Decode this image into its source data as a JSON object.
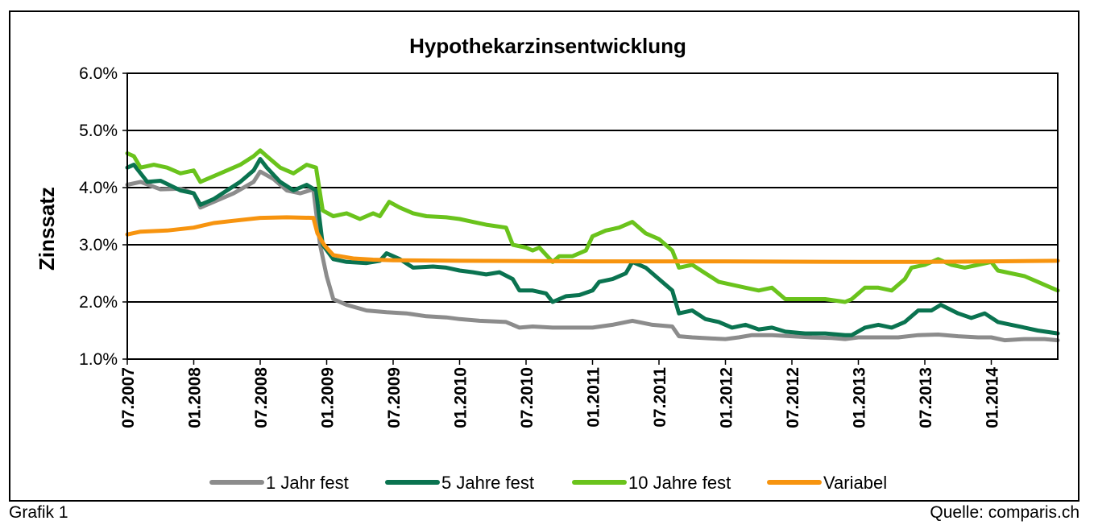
{
  "chart_data": {
    "type": "line",
    "title": "Hypothekarzinsentwicklung",
    "xlabel": "",
    "ylabel": "Zinssatz",
    "ylim": [
      1.0,
      6.0
    ],
    "yticks": [
      "1.0%",
      "2.0%",
      "3.0%",
      "4.0%",
      "5.0%",
      "6.0%"
    ],
    "xlim": [
      2007.5,
      2014.5
    ],
    "xticks": [
      "07.2007",
      "01.2008",
      "07.2008",
      "01.2009",
      "07.2009",
      "01.2010",
      "07.2010",
      "01.2011",
      "07.2011",
      "01.2012",
      "07.2012",
      "01.2013",
      "07.2013",
      "01.2014"
    ],
    "grid": true,
    "legend_position": "bottom",
    "series": [
      {
        "name": "1 Jahr fest",
        "color": "#8c8c8c",
        "points": [
          [
            2007.5,
            4.05
          ],
          [
            2007.6,
            4.1
          ],
          [
            2007.75,
            3.97
          ],
          [
            2007.9,
            3.98
          ],
          [
            2008.0,
            3.9
          ],
          [
            2008.05,
            3.65
          ],
          [
            2008.15,
            3.75
          ],
          [
            2008.3,
            3.9
          ],
          [
            2008.45,
            4.1
          ],
          [
            2008.5,
            4.28
          ],
          [
            2008.6,
            4.15
          ],
          [
            2008.7,
            3.95
          ],
          [
            2008.8,
            3.9
          ],
          [
            2008.9,
            3.97
          ],
          [
            2008.95,
            3.0
          ],
          [
            2009.0,
            2.45
          ],
          [
            2009.05,
            2.05
          ],
          [
            2009.15,
            1.95
          ],
          [
            2009.3,
            1.85
          ],
          [
            2009.45,
            1.82
          ],
          [
            2009.6,
            1.8
          ],
          [
            2009.75,
            1.75
          ],
          [
            2009.9,
            1.73
          ],
          [
            2010.0,
            1.7
          ],
          [
            2010.15,
            1.67
          ],
          [
            2010.25,
            1.66
          ],
          [
            2010.35,
            1.65
          ],
          [
            2010.45,
            1.55
          ],
          [
            2010.55,
            1.57
          ],
          [
            2010.7,
            1.55
          ],
          [
            2010.85,
            1.55
          ],
          [
            2011.0,
            1.55
          ],
          [
            2011.15,
            1.6
          ],
          [
            2011.3,
            1.67
          ],
          [
            2011.45,
            1.6
          ],
          [
            2011.6,
            1.57
          ],
          [
            2011.65,
            1.4
          ],
          [
            2011.75,
            1.38
          ],
          [
            2011.9,
            1.36
          ],
          [
            2012.0,
            1.35
          ],
          [
            2012.1,
            1.38
          ],
          [
            2012.2,
            1.42
          ],
          [
            2012.35,
            1.42
          ],
          [
            2012.5,
            1.4
          ],
          [
            2012.65,
            1.38
          ],
          [
            2012.8,
            1.37
          ],
          [
            2012.9,
            1.35
          ],
          [
            2013.0,
            1.38
          ],
          [
            2013.15,
            1.38
          ],
          [
            2013.3,
            1.38
          ],
          [
            2013.45,
            1.42
          ],
          [
            2013.6,
            1.43
          ],
          [
            2013.75,
            1.4
          ],
          [
            2013.9,
            1.38
          ],
          [
            2014.0,
            1.38
          ],
          [
            2014.1,
            1.33
          ],
          [
            2014.25,
            1.35
          ],
          [
            2014.4,
            1.35
          ],
          [
            2014.5,
            1.33
          ]
        ]
      },
      {
        "name": "5 Jahre fest",
        "color": "#0a7350",
        "points": [
          [
            2007.5,
            4.35
          ],
          [
            2007.55,
            4.4
          ],
          [
            2007.65,
            4.1
          ],
          [
            2007.75,
            4.12
          ],
          [
            2007.9,
            3.95
          ],
          [
            2008.0,
            3.9
          ],
          [
            2008.05,
            3.7
          ],
          [
            2008.15,
            3.8
          ],
          [
            2008.25,
            3.95
          ],
          [
            2008.35,
            4.1
          ],
          [
            2008.45,
            4.3
          ],
          [
            2008.5,
            4.5
          ],
          [
            2008.55,
            4.35
          ],
          [
            2008.65,
            4.1
          ],
          [
            2008.75,
            3.95
          ],
          [
            2008.85,
            4.05
          ],
          [
            2008.92,
            3.95
          ],
          [
            2008.97,
            3.0
          ],
          [
            2009.05,
            2.75
          ],
          [
            2009.15,
            2.7
          ],
          [
            2009.3,
            2.68
          ],
          [
            2009.4,
            2.72
          ],
          [
            2009.45,
            2.85
          ],
          [
            2009.55,
            2.75
          ],
          [
            2009.65,
            2.6
          ],
          [
            2009.8,
            2.62
          ],
          [
            2009.9,
            2.6
          ],
          [
            2010.0,
            2.55
          ],
          [
            2010.1,
            2.52
          ],
          [
            2010.2,
            2.48
          ],
          [
            2010.3,
            2.52
          ],
          [
            2010.4,
            2.4
          ],
          [
            2010.45,
            2.2
          ],
          [
            2010.55,
            2.2
          ],
          [
            2010.65,
            2.15
          ],
          [
            2010.7,
            2.0
          ],
          [
            2010.8,
            2.1
          ],
          [
            2010.9,
            2.12
          ],
          [
            2011.0,
            2.2
          ],
          [
            2011.05,
            2.35
          ],
          [
            2011.15,
            2.4
          ],
          [
            2011.25,
            2.5
          ],
          [
            2011.3,
            2.7
          ],
          [
            2011.4,
            2.6
          ],
          [
            2011.5,
            2.4
          ],
          [
            2011.6,
            2.2
          ],
          [
            2011.65,
            1.8
          ],
          [
            2011.75,
            1.85
          ],
          [
            2011.85,
            1.7
          ],
          [
            2011.95,
            1.65
          ],
          [
            2012.05,
            1.55
          ],
          [
            2012.15,
            1.6
          ],
          [
            2012.25,
            1.52
          ],
          [
            2012.35,
            1.55
          ],
          [
            2012.45,
            1.48
          ],
          [
            2012.6,
            1.45
          ],
          [
            2012.75,
            1.45
          ],
          [
            2012.9,
            1.42
          ],
          [
            2012.95,
            1.42
          ],
          [
            2013.05,
            1.55
          ],
          [
            2013.15,
            1.6
          ],
          [
            2013.25,
            1.55
          ],
          [
            2013.35,
            1.65
          ],
          [
            2013.45,
            1.85
          ],
          [
            2013.55,
            1.85
          ],
          [
            2013.62,
            1.95
          ],
          [
            2013.75,
            1.8
          ],
          [
            2013.85,
            1.72
          ],
          [
            2013.95,
            1.8
          ],
          [
            2014.05,
            1.65
          ],
          [
            2014.15,
            1.6
          ],
          [
            2014.25,
            1.55
          ],
          [
            2014.35,
            1.5
          ],
          [
            2014.5,
            1.45
          ]
        ]
      },
      {
        "name": "10 Jahre fest",
        "color": "#6ac31c",
        "points": [
          [
            2007.5,
            4.6
          ],
          [
            2007.55,
            4.55
          ],
          [
            2007.6,
            4.35
          ],
          [
            2007.7,
            4.4
          ],
          [
            2007.8,
            4.35
          ],
          [
            2007.9,
            4.25
          ],
          [
            2008.0,
            4.3
          ],
          [
            2008.05,
            4.1
          ],
          [
            2008.15,
            4.2
          ],
          [
            2008.25,
            4.3
          ],
          [
            2008.35,
            4.4
          ],
          [
            2008.45,
            4.55
          ],
          [
            2008.5,
            4.65
          ],
          [
            2008.55,
            4.55
          ],
          [
            2008.65,
            4.35
          ],
          [
            2008.75,
            4.25
          ],
          [
            2008.85,
            4.4
          ],
          [
            2008.92,
            4.35
          ],
          [
            2008.97,
            3.6
          ],
          [
            2009.05,
            3.5
          ],
          [
            2009.15,
            3.55
          ],
          [
            2009.25,
            3.45
          ],
          [
            2009.35,
            3.55
          ],
          [
            2009.4,
            3.5
          ],
          [
            2009.47,
            3.75
          ],
          [
            2009.55,
            3.65
          ],
          [
            2009.65,
            3.55
          ],
          [
            2009.75,
            3.5
          ],
          [
            2009.9,
            3.48
          ],
          [
            2010.0,
            3.45
          ],
          [
            2010.1,
            3.4
          ],
          [
            2010.2,
            3.35
          ],
          [
            2010.35,
            3.3
          ],
          [
            2010.4,
            3.0
          ],
          [
            2010.5,
            2.95
          ],
          [
            2010.55,
            2.9
          ],
          [
            2010.6,
            2.95
          ],
          [
            2010.7,
            2.7
          ],
          [
            2010.75,
            2.8
          ],
          [
            2010.85,
            2.8
          ],
          [
            2010.95,
            2.9
          ],
          [
            2011.0,
            3.15
          ],
          [
            2011.1,
            3.25
          ],
          [
            2011.2,
            3.3
          ],
          [
            2011.3,
            3.4
          ],
          [
            2011.4,
            3.2
          ],
          [
            2011.5,
            3.1
          ],
          [
            2011.6,
            2.9
          ],
          [
            2011.65,
            2.6
          ],
          [
            2011.75,
            2.65
          ],
          [
            2011.85,
            2.5
          ],
          [
            2011.95,
            2.35
          ],
          [
            2012.05,
            2.3
          ],
          [
            2012.15,
            2.25
          ],
          [
            2012.25,
            2.2
          ],
          [
            2012.35,
            2.25
          ],
          [
            2012.45,
            2.05
          ],
          [
            2012.6,
            2.05
          ],
          [
            2012.75,
            2.05
          ],
          [
            2012.9,
            2.0
          ],
          [
            2012.95,
            2.05
          ],
          [
            2013.05,
            2.25
          ],
          [
            2013.15,
            2.25
          ],
          [
            2013.25,
            2.2
          ],
          [
            2013.35,
            2.4
          ],
          [
            2013.4,
            2.6
          ],
          [
            2013.5,
            2.65
          ],
          [
            2013.6,
            2.75
          ],
          [
            2013.7,
            2.65
          ],
          [
            2013.8,
            2.6
          ],
          [
            2013.9,
            2.65
          ],
          [
            2014.0,
            2.7
          ],
          [
            2014.05,
            2.55
          ],
          [
            2014.15,
            2.5
          ],
          [
            2014.25,
            2.45
          ],
          [
            2014.35,
            2.35
          ],
          [
            2014.45,
            2.25
          ],
          [
            2014.5,
            2.2
          ]
        ]
      },
      {
        "name": "Variabel",
        "color": "#f7940f",
        "points": [
          [
            2007.5,
            3.18
          ],
          [
            2007.6,
            3.23
          ],
          [
            2007.8,
            3.25
          ],
          [
            2008.0,
            3.3
          ],
          [
            2008.15,
            3.38
          ],
          [
            2008.3,
            3.42
          ],
          [
            2008.5,
            3.47
          ],
          [
            2008.7,
            3.48
          ],
          [
            2008.9,
            3.47
          ],
          [
            2008.93,
            3.2
          ],
          [
            2008.98,
            3.0
          ],
          [
            2009.05,
            2.82
          ],
          [
            2009.2,
            2.76
          ],
          [
            2009.35,
            2.74
          ],
          [
            2009.5,
            2.73
          ],
          [
            2010.0,
            2.72
          ],
          [
            2011.0,
            2.71
          ],
          [
            2012.0,
            2.71
          ],
          [
            2013.0,
            2.7
          ],
          [
            2013.5,
            2.7
          ],
          [
            2014.0,
            2.71
          ],
          [
            2014.5,
            2.72
          ]
        ]
      }
    ]
  },
  "footer": {
    "left": "Grafik 1",
    "right": "Quelle: comparis.ch"
  }
}
